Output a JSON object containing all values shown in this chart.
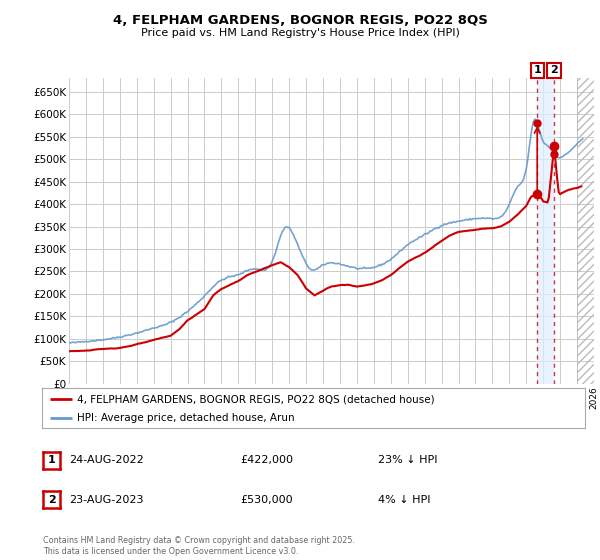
{
  "title": "4, FELPHAM GARDENS, BOGNOR REGIS, PO22 8QS",
  "subtitle": "Price paid vs. HM Land Registry's House Price Index (HPI)",
  "legend_label_1": "4, FELPHAM GARDENS, BOGNOR REGIS, PO22 8QS (detached house)",
  "legend_label_2": "HPI: Average price, detached house, Arun",
  "sale1_date": "24-AUG-2022",
  "sale1_price": "£422,000",
  "sale1_hpi": "23% ↓ HPI",
  "sale2_date": "23-AUG-2023",
  "sale2_price": "£530,000",
  "sale2_hpi": "4% ↓ HPI",
  "footer": "Contains HM Land Registry data © Crown copyright and database right 2025.\nThis data is licensed under the Open Government Licence v3.0.",
  "price_color": "#cc0000",
  "hpi_color": "#6699cc",
  "dashed_line_color": "#cc0000",
  "shade_color": "#ddeeff",
  "ylim": [
    0,
    680000
  ],
  "yticks": [
    0,
    50000,
    100000,
    150000,
    200000,
    250000,
    300000,
    350000,
    400000,
    450000,
    500000,
    550000,
    600000,
    650000
  ],
  "background_color": "#ffffff",
  "grid_color": "#cccccc",
  "sale1_x": 2022.646,
  "sale2_x": 2023.646,
  "sale1_y": 422000,
  "sale2_y": 530000,
  "xmin": 1995,
  "xmax": 2026,
  "hatch_start": 2025.0
}
